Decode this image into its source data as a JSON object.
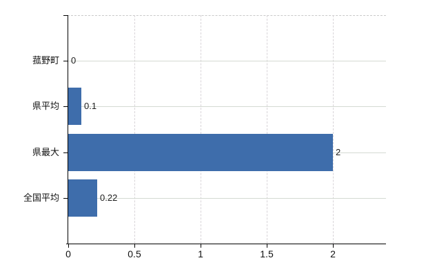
{
  "chart": {
    "background": "#ffffff",
    "bar_color": "#3e6dab",
    "axis_color": "#000000",
    "h_grid_color": "#d4dad2",
    "v_grid_color": "#d8d4d8",
    "top_border_color": "#c9c9c9",
    "label_color": "#111111"
  },
  "chart_data": {
    "type": "bar",
    "orientation": "horizontal",
    "title": "",
    "categories": [
      "菰野町",
      "県平均",
      "県最大",
      "全国平均"
    ],
    "values": [
      0,
      0.1,
      2,
      0.22
    ],
    "value_labels": [
      "0",
      "0.1",
      "2",
      "0.22"
    ],
    "x_ticks": [
      0,
      0.5,
      1,
      1.5,
      2
    ],
    "x_tick_labels": [
      "0",
      "0.5",
      "1",
      "1.5",
      "2"
    ],
    "xlim": [
      0,
      2.4
    ],
    "ylabel": "",
    "xlabel": "",
    "grid": true,
    "legend_position": "none"
  }
}
